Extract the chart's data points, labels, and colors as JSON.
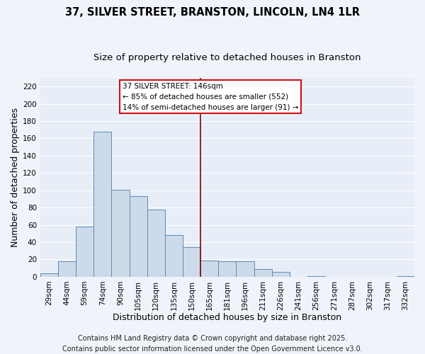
{
  "title": "37, SILVER STREET, BRANSTON, LINCOLN, LN4 1LR",
  "subtitle": "Size of property relative to detached houses in Branston",
  "xlabel": "Distribution of detached houses by size in Branston",
  "ylabel": "Number of detached properties",
  "categories": [
    "29sqm",
    "44sqm",
    "59sqm",
    "74sqm",
    "90sqm",
    "105sqm",
    "120sqm",
    "135sqm",
    "150sqm",
    "165sqm",
    "181sqm",
    "196sqm",
    "211sqm",
    "226sqm",
    "241sqm",
    "256sqm",
    "271sqm",
    "287sqm",
    "302sqm",
    "317sqm",
    "332sqm"
  ],
  "values": [
    4,
    18,
    58,
    168,
    101,
    93,
    78,
    48,
    34,
    19,
    18,
    18,
    9,
    6,
    0,
    1,
    0,
    0,
    0,
    0,
    1
  ],
  "bar_color": "#ccdaea",
  "bar_edge_color": "#5f8ab0",
  "fig_bg_color": "#f0f4fa",
  "ax_bg_color": "#e8eef8",
  "grid_color": "#ffffff",
  "ylim": [
    0,
    230
  ],
  "yticks": [
    0,
    20,
    40,
    60,
    80,
    100,
    120,
    140,
    160,
    180,
    200,
    220
  ],
  "vline_x": 8.5,
  "vline_color": "#8b0000",
  "annotation_title": "37 SILVER STREET: 146sqm",
  "annotation_line1": "← 85% of detached houses are smaller (552)",
  "annotation_line2": "14% of semi-detached houses are larger (91) →",
  "footer_line1": "Contains HM Land Registry data © Crown copyright and database right 2025.",
  "footer_line2": "Contains public sector information licensed under the Open Government Licence v3.0.",
  "title_fontsize": 10.5,
  "subtitle_fontsize": 9.5,
  "axis_label_fontsize": 9,
  "tick_fontsize": 7.5,
  "annotation_fontsize": 7.5,
  "footer_fontsize": 7
}
